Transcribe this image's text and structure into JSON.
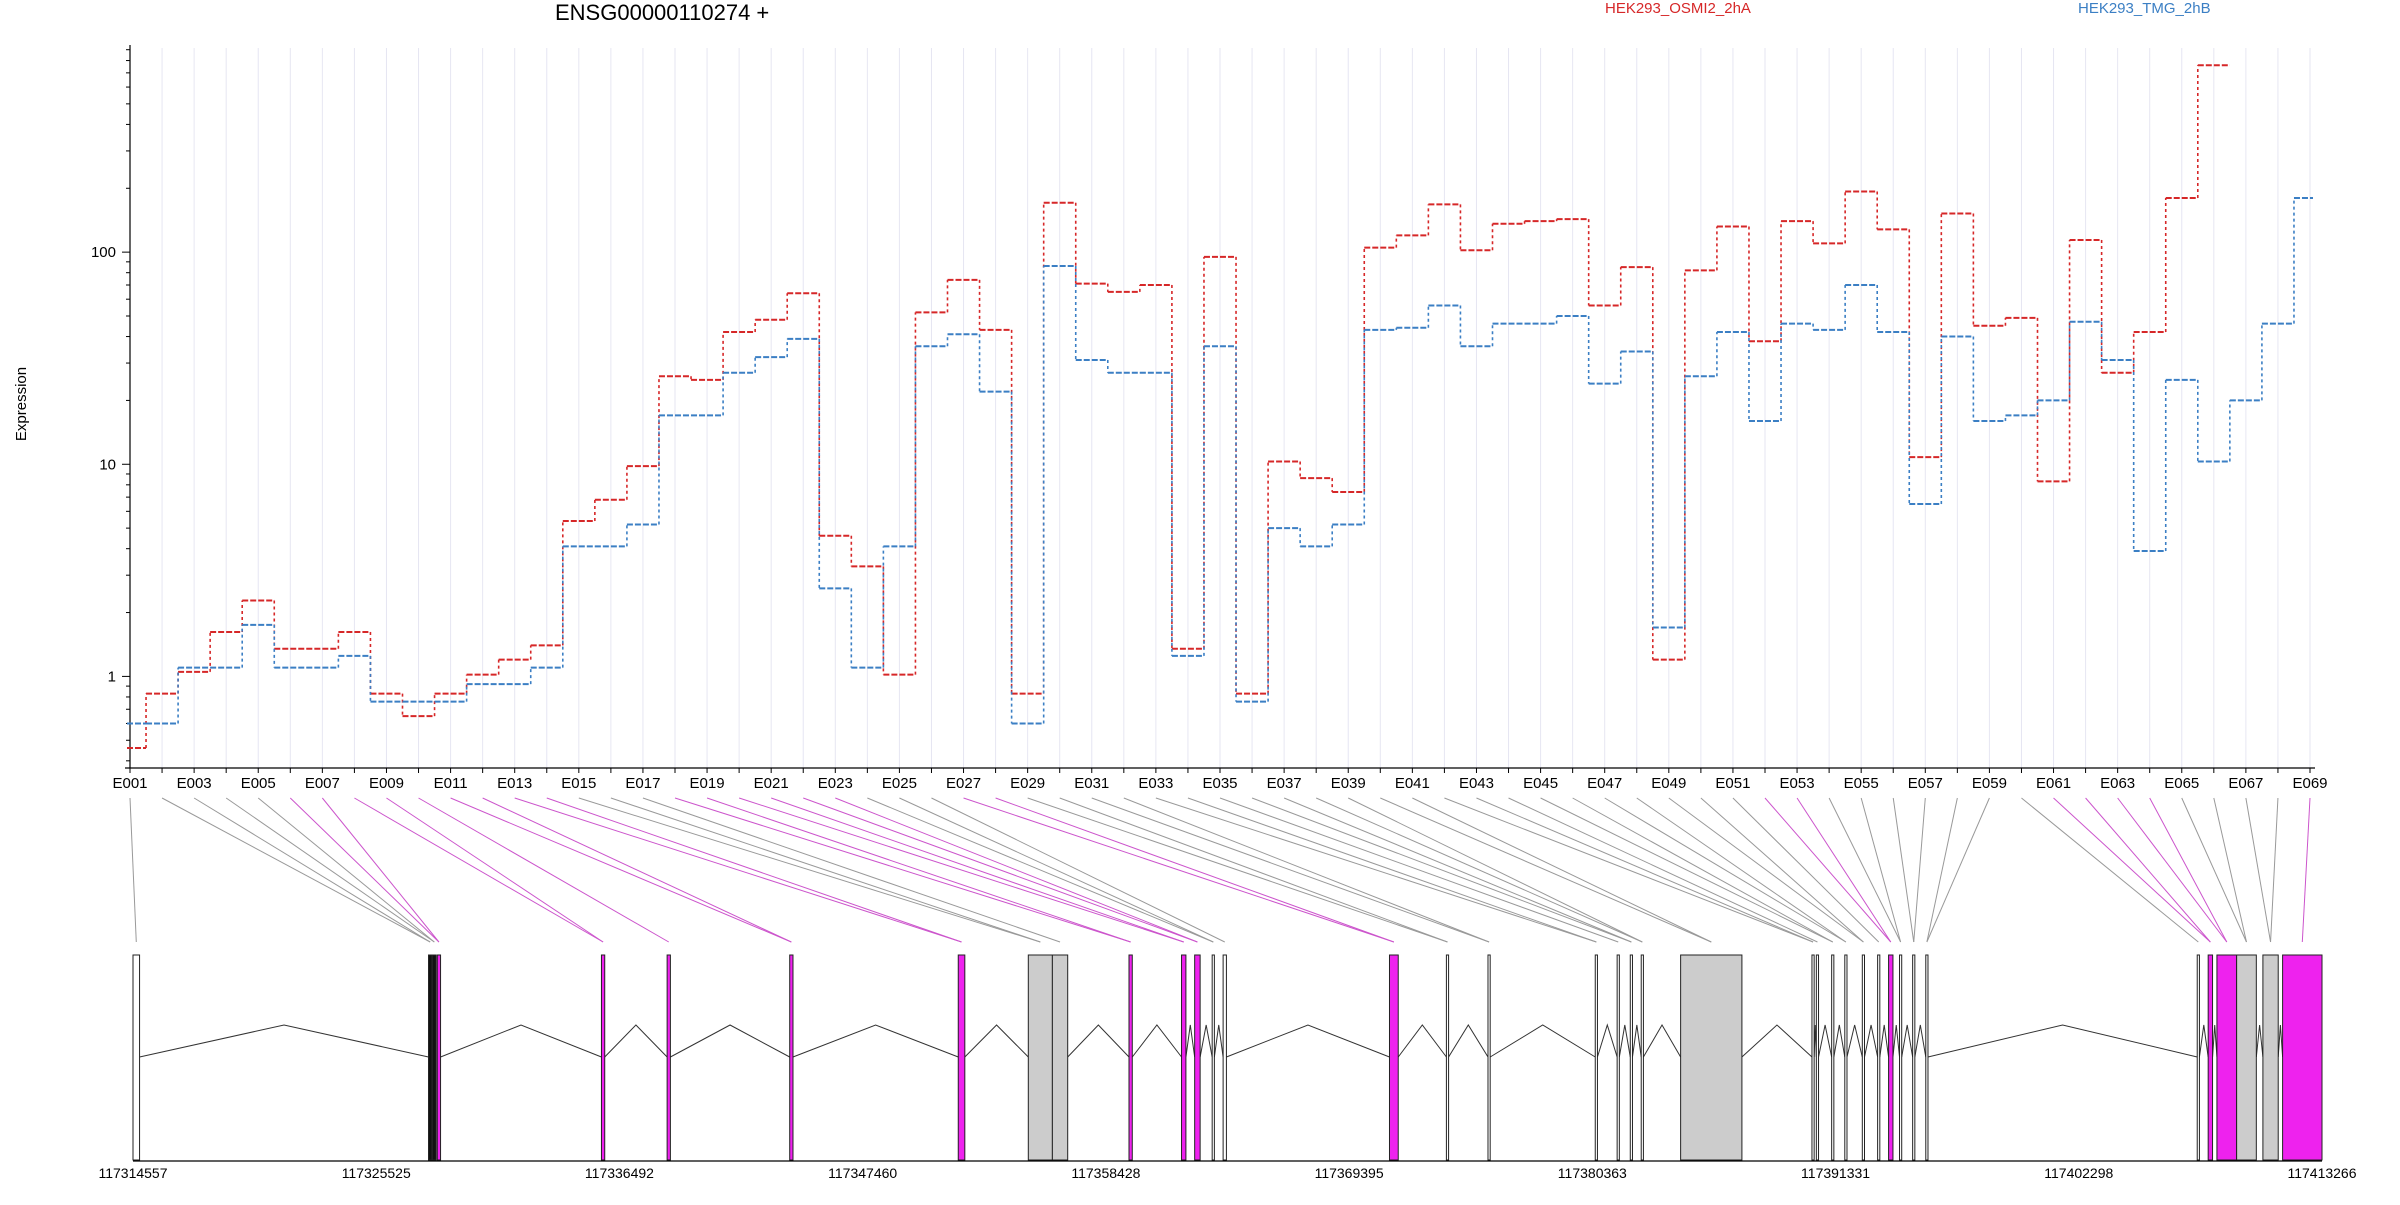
{
  "chart_data": {
    "type": "line",
    "title": "ENSG00000110274 +",
    "ylabel": "Expression",
    "xlabel": "",
    "yscale": "log",
    "ylim": [
      0.37,
      1000
    ],
    "yticks": [
      1,
      10,
      100
    ],
    "ytick_labels": [
      "1",
      "10",
      "100"
    ],
    "grid": "vertical lines at exons",
    "legend_placement": "top-right",
    "categories": [
      "E001",
      "E002",
      "E003",
      "E004",
      "E005",
      "E006",
      "E007",
      "E008",
      "E009",
      "E010",
      "E011",
      "E012",
      "E013",
      "E014",
      "E015",
      "E016",
      "E017",
      "E018",
      "E019",
      "E020",
      "E021",
      "E022",
      "E023",
      "E024",
      "E025",
      "E026",
      "E027",
      "E028",
      "E029",
      "E030",
      "E031",
      "E032",
      "E033",
      "E034",
      "E035",
      "E036",
      "E037",
      "E038",
      "E039",
      "E040",
      "E041",
      "E042",
      "E043",
      "E044",
      "E045",
      "E046",
      "E047",
      "E048",
      "E049",
      "E050",
      "E051",
      "E052",
      "E053",
      "E054",
      "E055",
      "E056",
      "E057",
      "E058",
      "E059",
      "E060",
      "E061",
      "E062",
      "E063",
      "E064",
      "E065",
      "E066",
      "E067",
      "E068",
      "E069"
    ],
    "xtick_labels": [
      "E001",
      "E003",
      "E005",
      "E007",
      "E009",
      "E011",
      "E013",
      "E015",
      "E017",
      "E019",
      "E021",
      "E023",
      "E025",
      "E027",
      "E029",
      "E031",
      "E033",
      "E035",
      "E037",
      "E039",
      "E041",
      "E043",
      "E045",
      "E047",
      "E049",
      "E051",
      "E053",
      "E055",
      "E057",
      "E059",
      "E061",
      "E063",
      "E065",
      "E067",
      "E069"
    ],
    "series": [
      {
        "name": "HEK293_OSMI2_2hA",
        "color": "#d62728",
        "values": [
          0.46,
          0.83,
          1.05,
          1.62,
          2.28,
          1.35,
          1.35,
          1.62,
          0.83,
          0.65,
          0.83,
          1.02,
          1.2,
          1.4,
          5.4,
          6.8,
          9.8,
          26,
          25,
          42,
          48,
          64,
          4.6,
          3.3,
          1.02,
          52,
          74,
          43,
          0.83,
          171,
          71,
          65,
          70,
          1.35,
          95,
          0.83,
          10.3,
          8.6,
          7.4,
          105,
          120,
          168,
          102,
          136,
          140,
          143,
          56,
          85,
          1.2,
          82,
          132,
          38,
          140,
          110,
          193,
          128,
          10.8,
          152,
          45,
          49,
          8.3,
          114,
          27,
          42,
          180,
          760,
          0,
          0,
          0
        ]
      },
      {
        "name": "HEK293_TMG_2hB",
        "color": "#3b7fc4",
        "values": [
          0.6,
          0.6,
          1.1,
          1.1,
          1.75,
          1.1,
          1.1,
          1.25,
          0.76,
          0.76,
          0.76,
          0.92,
          0.92,
          1.1,
          4.1,
          4.1,
          5.2,
          17,
          17,
          27,
          32,
          39,
          2.6,
          1.1,
          4.1,
          36,
          41,
          22,
          0.6,
          86,
          31,
          27,
          27,
          1.25,
          36,
          0.76,
          5.0,
          4.1,
          5.2,
          43,
          44,
          56,
          36,
          46,
          46,
          50,
          24,
          34,
          1.7,
          26,
          42,
          16,
          46,
          43,
          70,
          42,
          6.5,
          40,
          16,
          17,
          20,
          47,
          31,
          3.9,
          25,
          10.3,
          20,
          46,
          180
        ]
      }
    ],
    "genomic_axis": {
      "start": 117314557,
      "end": 117413266,
      "tick_labels": [
        "117314557",
        "117325525",
        "117336492",
        "117347460",
        "117358428",
        "117369395",
        "117380363",
        "117391331",
        "117402298",
        "117413266"
      ]
    },
    "exon_colors": {
      "significant": "#ee22ee",
      "normal": "#ffffff",
      "tall": "#cccccc"
    }
  }
}
